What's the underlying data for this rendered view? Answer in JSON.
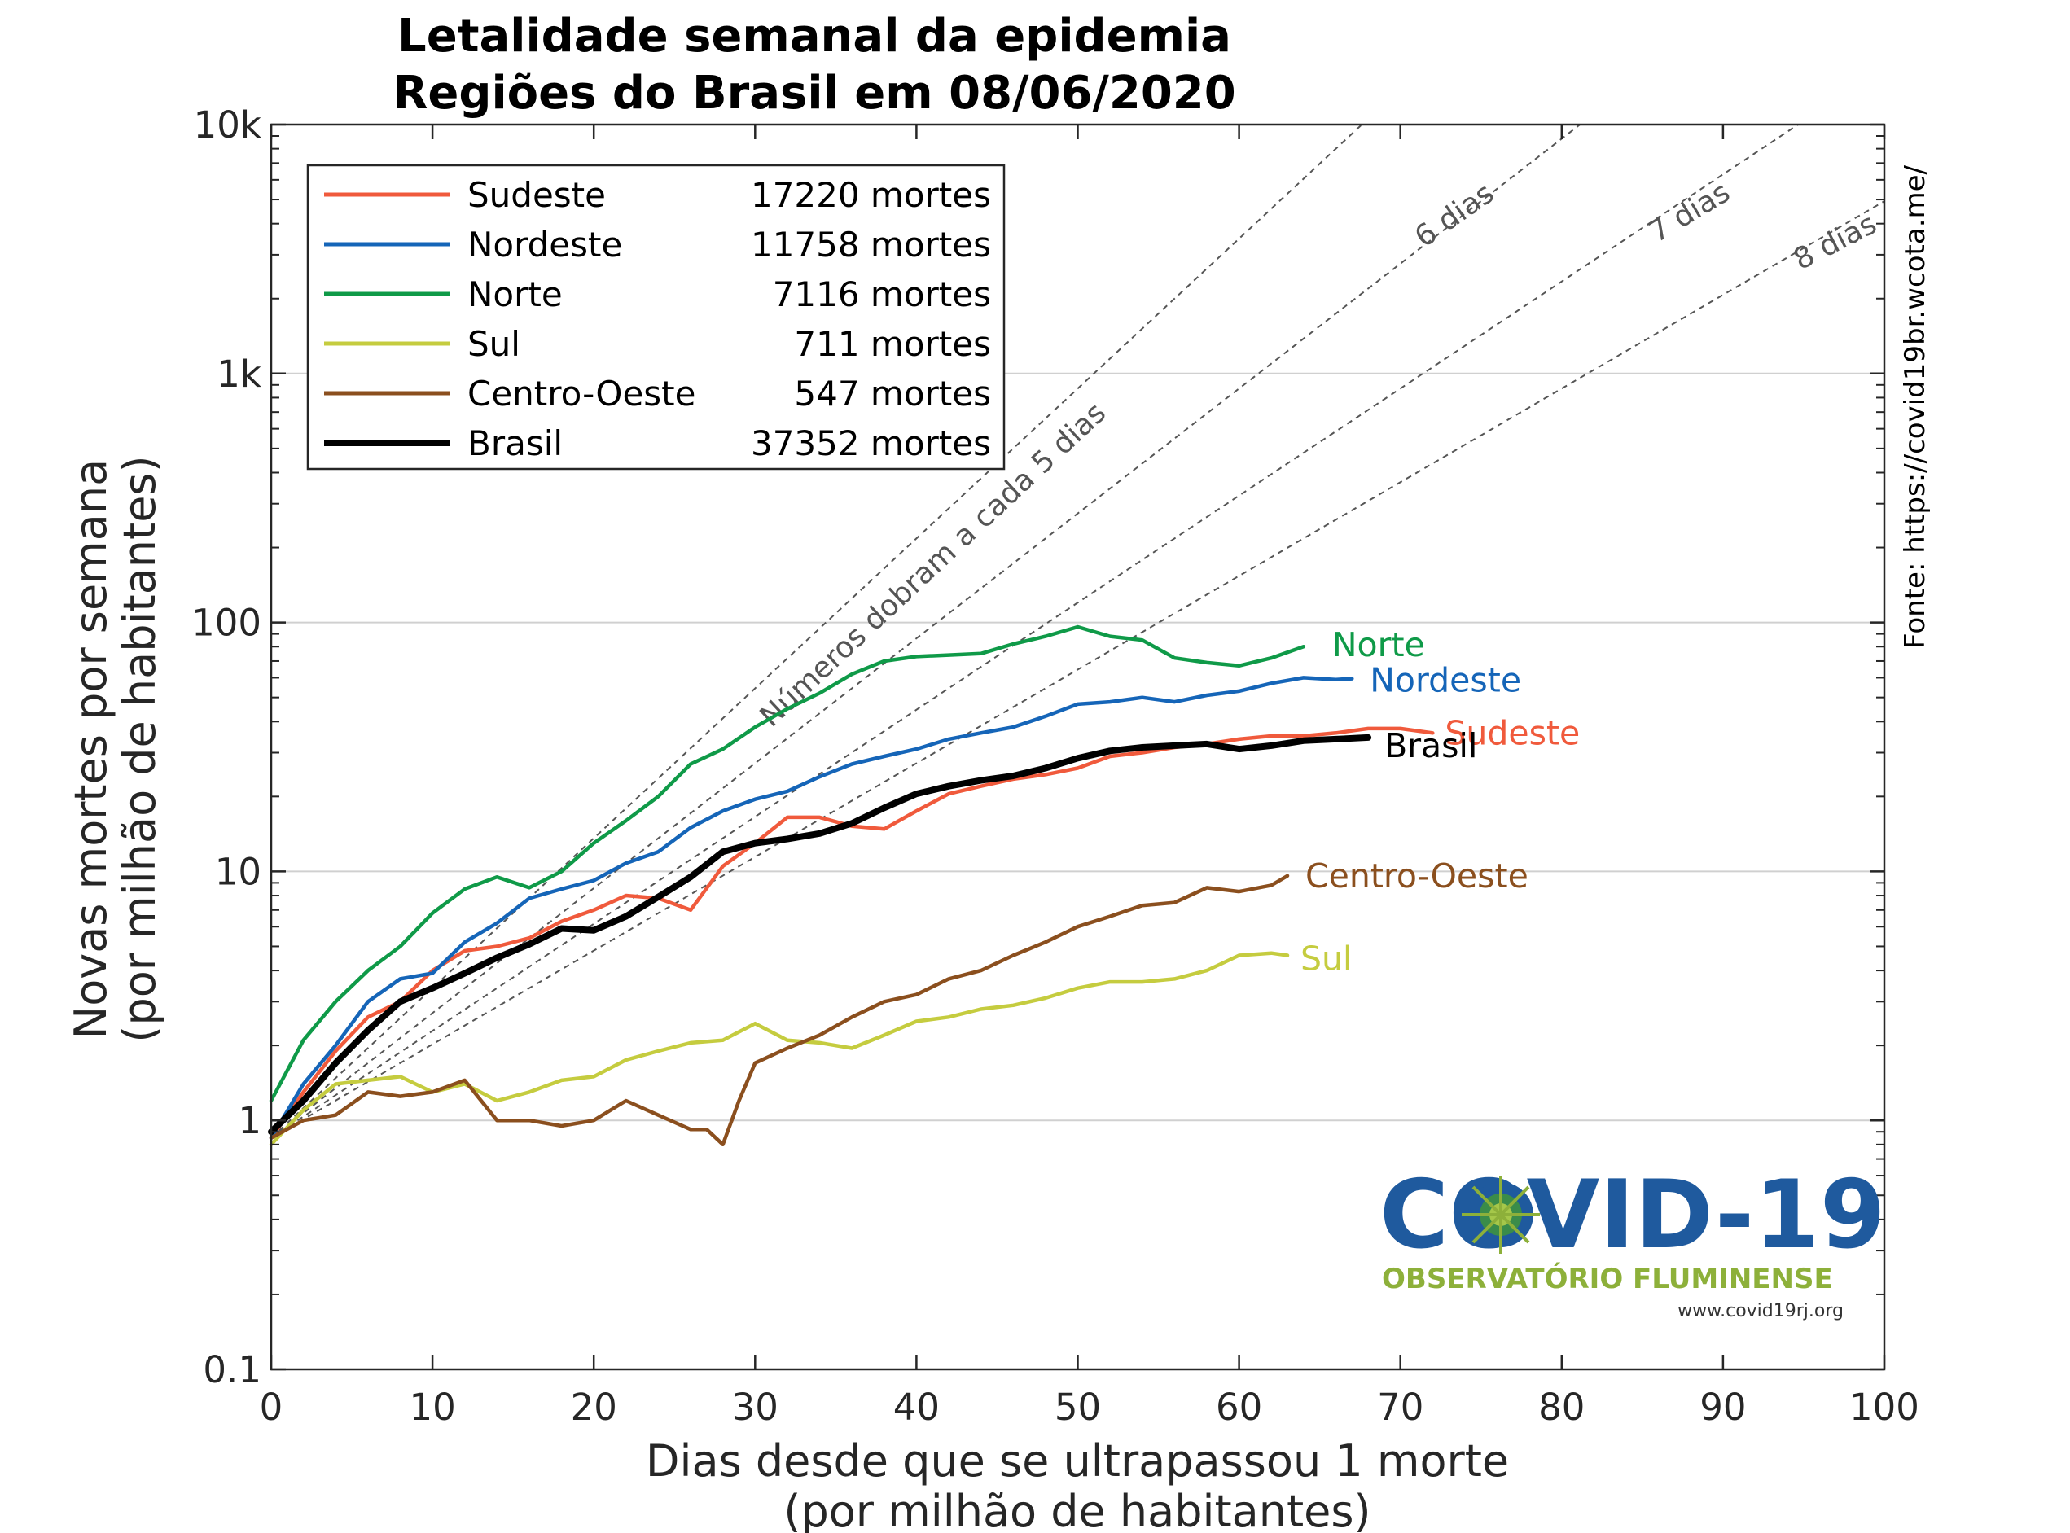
{
  "chart_data": {
    "type": "line",
    "title": "Letalidade semanal da epidemia",
    "subtitle": "Regiões do Brasil em 08/06/2020",
    "xlabel": "Dias desde que se ultrapassou 1 morte",
    "xlabel2": "(por milhão de habitantes)",
    "ylabel": "Novas mortes por semana",
    "ylabel2": "(por milhão de habitantes)",
    "xlim": [
      0,
      100
    ],
    "ylim": [
      0.1,
      10000
    ],
    "yscale": "log",
    "grid": "horizontal",
    "legend_position": "top-left",
    "x_ticks": [
      0,
      10,
      20,
      30,
      40,
      50,
      60,
      70,
      80,
      90,
      100
    ],
    "x_tick_labels": [
      "0",
      "10",
      "20",
      "30",
      "40",
      "50",
      "60",
      "70",
      "80",
      "90",
      "100"
    ],
    "y_ticks": [
      0.1,
      1,
      10,
      100,
      1000,
      10000
    ],
    "y_tick_labels": [
      "0.1",
      "1",
      "10",
      "100",
      "1k",
      "10k"
    ],
    "source_text": "Fonte: https://covid19br.wcota.me/",
    "reference_lines": [
      {
        "doubling_days": 5,
        "label": "Números dobram a cada 5 dias"
      },
      {
        "doubling_days": 6,
        "label": "6 dias"
      },
      {
        "doubling_days": 7,
        "label": "7 dias"
      },
      {
        "doubling_days": 8,
        "label": "8 dias"
      }
    ],
    "series": [
      {
        "name": "Sudeste",
        "deaths_label": "17220 mortes",
        "color": "#f05a3c",
        "end_label": "Sudeste",
        "x": [
          0,
          2,
          4,
          6,
          8,
          10,
          12,
          14,
          16,
          18,
          20,
          22,
          24,
          26,
          28,
          30,
          32,
          34,
          36,
          38,
          40,
          42,
          44,
          46,
          48,
          50,
          52,
          54,
          56,
          58,
          60,
          62,
          64,
          66,
          68,
          70,
          72
        ],
        "values": [
          0.85,
          1.3,
          1.9,
          2.6,
          3.0,
          4.0,
          4.8,
          5.0,
          5.4,
          6.3,
          7.0,
          8.0,
          7.8,
          7.0,
          10.5,
          13.0,
          16.5,
          16.5,
          15.2,
          14.8,
          17.5,
          20.5,
          22.0,
          23.5,
          24.5,
          26.0,
          29.0,
          30.0,
          31.5,
          32.5,
          34.0,
          35.0,
          35.0,
          36.0,
          37.5,
          37.5,
          36.0
        ]
      },
      {
        "name": "Nordeste",
        "deaths_label": "11758 mortes",
        "color": "#1565b8",
        "end_label": "Nordeste",
        "x": [
          0,
          2,
          4,
          6,
          8,
          10,
          12,
          14,
          16,
          18,
          20,
          22,
          24,
          26,
          28,
          30,
          32,
          34,
          36,
          38,
          40,
          42,
          44,
          46,
          48,
          50,
          52,
          54,
          56,
          58,
          60,
          62,
          64,
          66,
          67
        ],
        "values": [
          0.85,
          1.4,
          2.0,
          3.0,
          3.7,
          3.9,
          5.2,
          6.2,
          7.8,
          8.5,
          9.2,
          10.8,
          12.0,
          15.0,
          17.5,
          19.5,
          21.0,
          24.0,
          27.0,
          29.0,
          31.0,
          34.0,
          36.0,
          38.0,
          42.0,
          47.0,
          48.0,
          50.0,
          48.0,
          51.0,
          53.0,
          57.0,
          60.0,
          59.0,
          59.5
        ]
      },
      {
        "name": "Norte",
        "deaths_label": "7116 mortes",
        "color": "#0f9a48",
        "end_label": "Norte",
        "x": [
          0,
          2,
          4,
          6,
          8,
          10,
          12,
          14,
          16,
          18,
          20,
          22,
          24,
          26,
          28,
          30,
          32,
          34,
          36,
          38,
          40,
          42,
          44,
          46,
          48,
          50,
          52,
          54,
          56,
          58,
          60,
          62,
          64
        ],
        "values": [
          1.2,
          2.1,
          3.0,
          4.0,
          5.0,
          6.8,
          8.5,
          9.5,
          8.6,
          10.0,
          13.0,
          16.0,
          20.0,
          27.0,
          31.0,
          38.0,
          45.0,
          52.0,
          62.0,
          70.0,
          73.0,
          74.0,
          75.0,
          82.0,
          88.0,
          96.0,
          88.0,
          85.0,
          72.0,
          69.0,
          67.0,
          72.0,
          80.0
        ]
      },
      {
        "name": "Sul",
        "deaths_label": "711 mortes",
        "color": "#c5cc3f",
        "end_label": "Sul",
        "x": [
          0,
          2,
          4,
          6,
          8,
          10,
          12,
          14,
          16,
          18,
          20,
          22,
          24,
          26,
          28,
          30,
          32,
          34,
          36,
          38,
          40,
          42,
          44,
          46,
          48,
          50,
          52,
          54,
          56,
          58,
          60,
          62,
          63
        ],
        "values": [
          0.8,
          1.1,
          1.4,
          1.45,
          1.5,
          1.3,
          1.4,
          1.2,
          1.3,
          1.45,
          1.5,
          1.75,
          1.9,
          2.05,
          2.1,
          2.45,
          2.1,
          2.05,
          1.95,
          2.2,
          2.5,
          2.6,
          2.8,
          2.9,
          3.1,
          3.4,
          3.6,
          3.6,
          3.7,
          4.0,
          4.6,
          4.7,
          4.6
        ]
      },
      {
        "name": "Centro-Oeste",
        "deaths_label": "547 mortes",
        "color": "#8b4f1e",
        "end_label": "Centro-Oeste",
        "x": [
          0,
          2,
          4,
          6,
          8,
          10,
          12,
          14,
          16,
          18,
          20,
          22,
          24,
          26,
          27,
          28,
          29,
          30,
          32,
          34,
          36,
          38,
          40,
          42,
          44,
          46,
          48,
          50,
          52,
          54,
          56,
          58,
          60,
          62,
          63
        ],
        "values": [
          0.85,
          1.0,
          1.05,
          1.3,
          1.25,
          1.3,
          1.45,
          1.0,
          1.0,
          0.95,
          1.0,
          1.2,
          1.05,
          0.92,
          0.92,
          0.8,
          1.2,
          1.7,
          1.95,
          2.2,
          2.6,
          3.0,
          3.2,
          3.7,
          4.0,
          4.6,
          5.2,
          6.0,
          6.6,
          7.3,
          7.5,
          8.6,
          8.3,
          8.8,
          9.6
        ]
      },
      {
        "name": "Brasil",
        "deaths_label": "37352 mortes",
        "color": "#000000",
        "end_label": "Brasil",
        "bold": true,
        "x": [
          0,
          2,
          4,
          6,
          8,
          10,
          12,
          14,
          16,
          18,
          20,
          22,
          24,
          26,
          28,
          30,
          32,
          34,
          36,
          38,
          40,
          42,
          44,
          46,
          48,
          50,
          52,
          54,
          56,
          58,
          60,
          62,
          64,
          66,
          68
        ],
        "values": [
          0.9,
          1.2,
          1.7,
          2.3,
          3.0,
          3.4,
          3.9,
          4.5,
          5.1,
          5.9,
          5.8,
          6.6,
          7.9,
          9.5,
          12.0,
          13.0,
          13.5,
          14.2,
          15.6,
          18.0,
          20.5,
          22.0,
          23.2,
          24.2,
          26.0,
          28.5,
          30.5,
          31.5,
          32.0,
          32.5,
          31.0,
          32.0,
          33.5,
          34.0,
          34.5
        ]
      }
    ]
  },
  "logo": {
    "name": "COVID-19",
    "subtitle": "OBSERVATÓRIO FLUMINENSE",
    "url": "www.covid19rj.org"
  }
}
